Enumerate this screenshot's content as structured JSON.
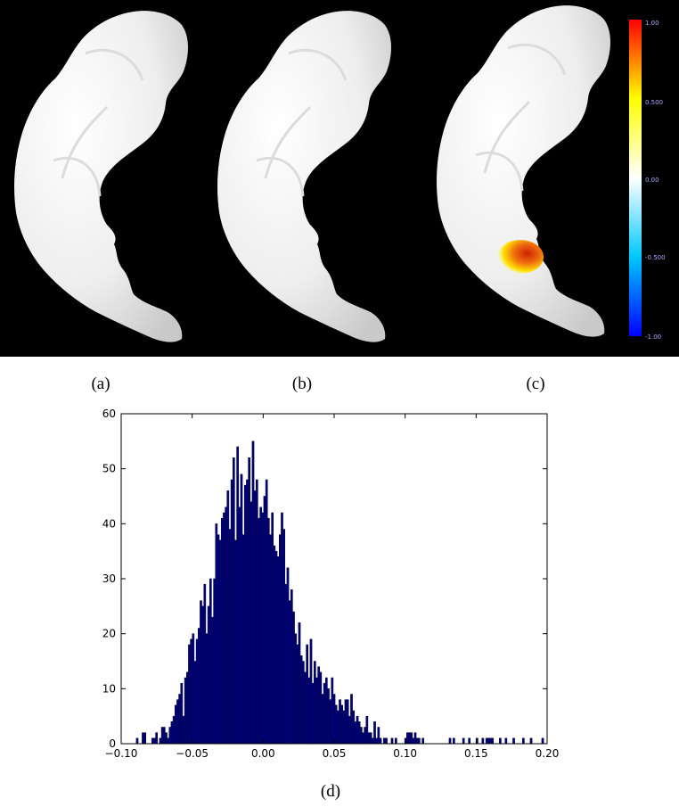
{
  "captions": {
    "a": "(a)",
    "b": "(b)",
    "c": "(c)",
    "d": "(d)"
  },
  "colorbar": {
    "ticks": [
      {
        "value": 1.0,
        "label": "1.00"
      },
      {
        "value": 0.5,
        "label": "0.500"
      },
      {
        "value": 0.0,
        "label": "0.00"
      },
      {
        "value": -0.5,
        "label": "-0.500"
      },
      {
        "value": -1.0,
        "label": "-1.00"
      }
    ],
    "colors": [
      "#0000ff",
      "#00c8ff",
      "#ffffff",
      "#ffff00",
      "#ff0000"
    ]
  },
  "colors": {
    "panel_background": "#000000",
    "surface": "#f1f1f1",
    "histogram_bar": "#00007f"
  },
  "chart_data": {
    "type": "bar",
    "xlim": [
      -0.1,
      0.2
    ],
    "ylim": [
      0,
      60
    ],
    "xticks": [
      -0.1,
      -0.05,
      0.0,
      0.05,
      0.1,
      0.15,
      0.2
    ],
    "xtick_labels": [
      "−0.10",
      "−0.05",
      "0.00",
      "0.05",
      "0.10",
      "0.15",
      "0.20"
    ],
    "yticks": [
      0,
      10,
      20,
      30,
      40,
      50,
      60
    ],
    "ytick_labels": [
      "0",
      "10",
      "20",
      "30",
      "40",
      "50",
      "60"
    ],
    "bin_start": -0.0894,
    "bin_width": 0.00136,
    "counts": [
      1,
      0,
      0,
      2,
      2,
      0,
      0,
      0,
      1,
      1,
      2,
      0,
      1,
      3,
      3,
      2,
      1,
      3,
      4,
      5,
      7,
      8,
      9,
      11,
      5,
      12,
      13,
      18,
      19,
      20,
      15,
      19,
      21,
      26,
      25,
      29,
      20,
      25,
      30,
      23,
      30,
      40,
      38,
      37,
      41,
      42,
      43,
      46,
      39,
      48,
      52,
      37,
      54,
      43,
      49,
      38,
      47,
      48,
      52,
      44,
      55,
      46,
      48,
      41,
      43,
      42,
      45,
      48,
      41,
      38,
      42,
      36,
      35,
      34,
      38,
      42,
      39,
      29,
      32,
      26,
      28,
      24,
      20,
      18,
      22,
      16,
      15,
      13,
      18,
      12,
      19,
      11,
      15,
      12,
      14,
      13,
      9,
      11,
      12,
      10,
      8,
      12,
      9,
      7,
      6,
      8,
      7,
      6,
      8,
      8,
      5,
      9,
      6,
      4,
      5,
      4,
      3,
      2,
      3,
      5,
      2,
      2,
      1,
      4,
      1,
      3,
      1,
      0,
      1,
      1,
      0,
      0,
      1,
      0,
      1,
      0,
      0,
      0,
      0,
      1,
      2,
      2,
      2,
      1,
      2,
      1,
      1,
      0,
      1,
      0,
      0,
      0,
      0,
      0,
      0,
      0,
      0,
      0,
      0,
      0,
      0,
      0,
      1,
      0,
      1,
      0,
      0,
      0,
      0,
      1,
      0,
      0,
      1,
      0,
      0,
      0,
      1,
      0,
      0,
      1,
      0,
      1,
      1,
      1,
      1,
      0,
      0,
      0,
      1,
      0,
      0,
      1,
      0,
      0,
      0,
      1,
      0,
      0,
      0,
      0,
      1,
      0,
      0,
      0,
      1,
      0,
      0,
      0,
      0,
      0,
      1
    ]
  }
}
